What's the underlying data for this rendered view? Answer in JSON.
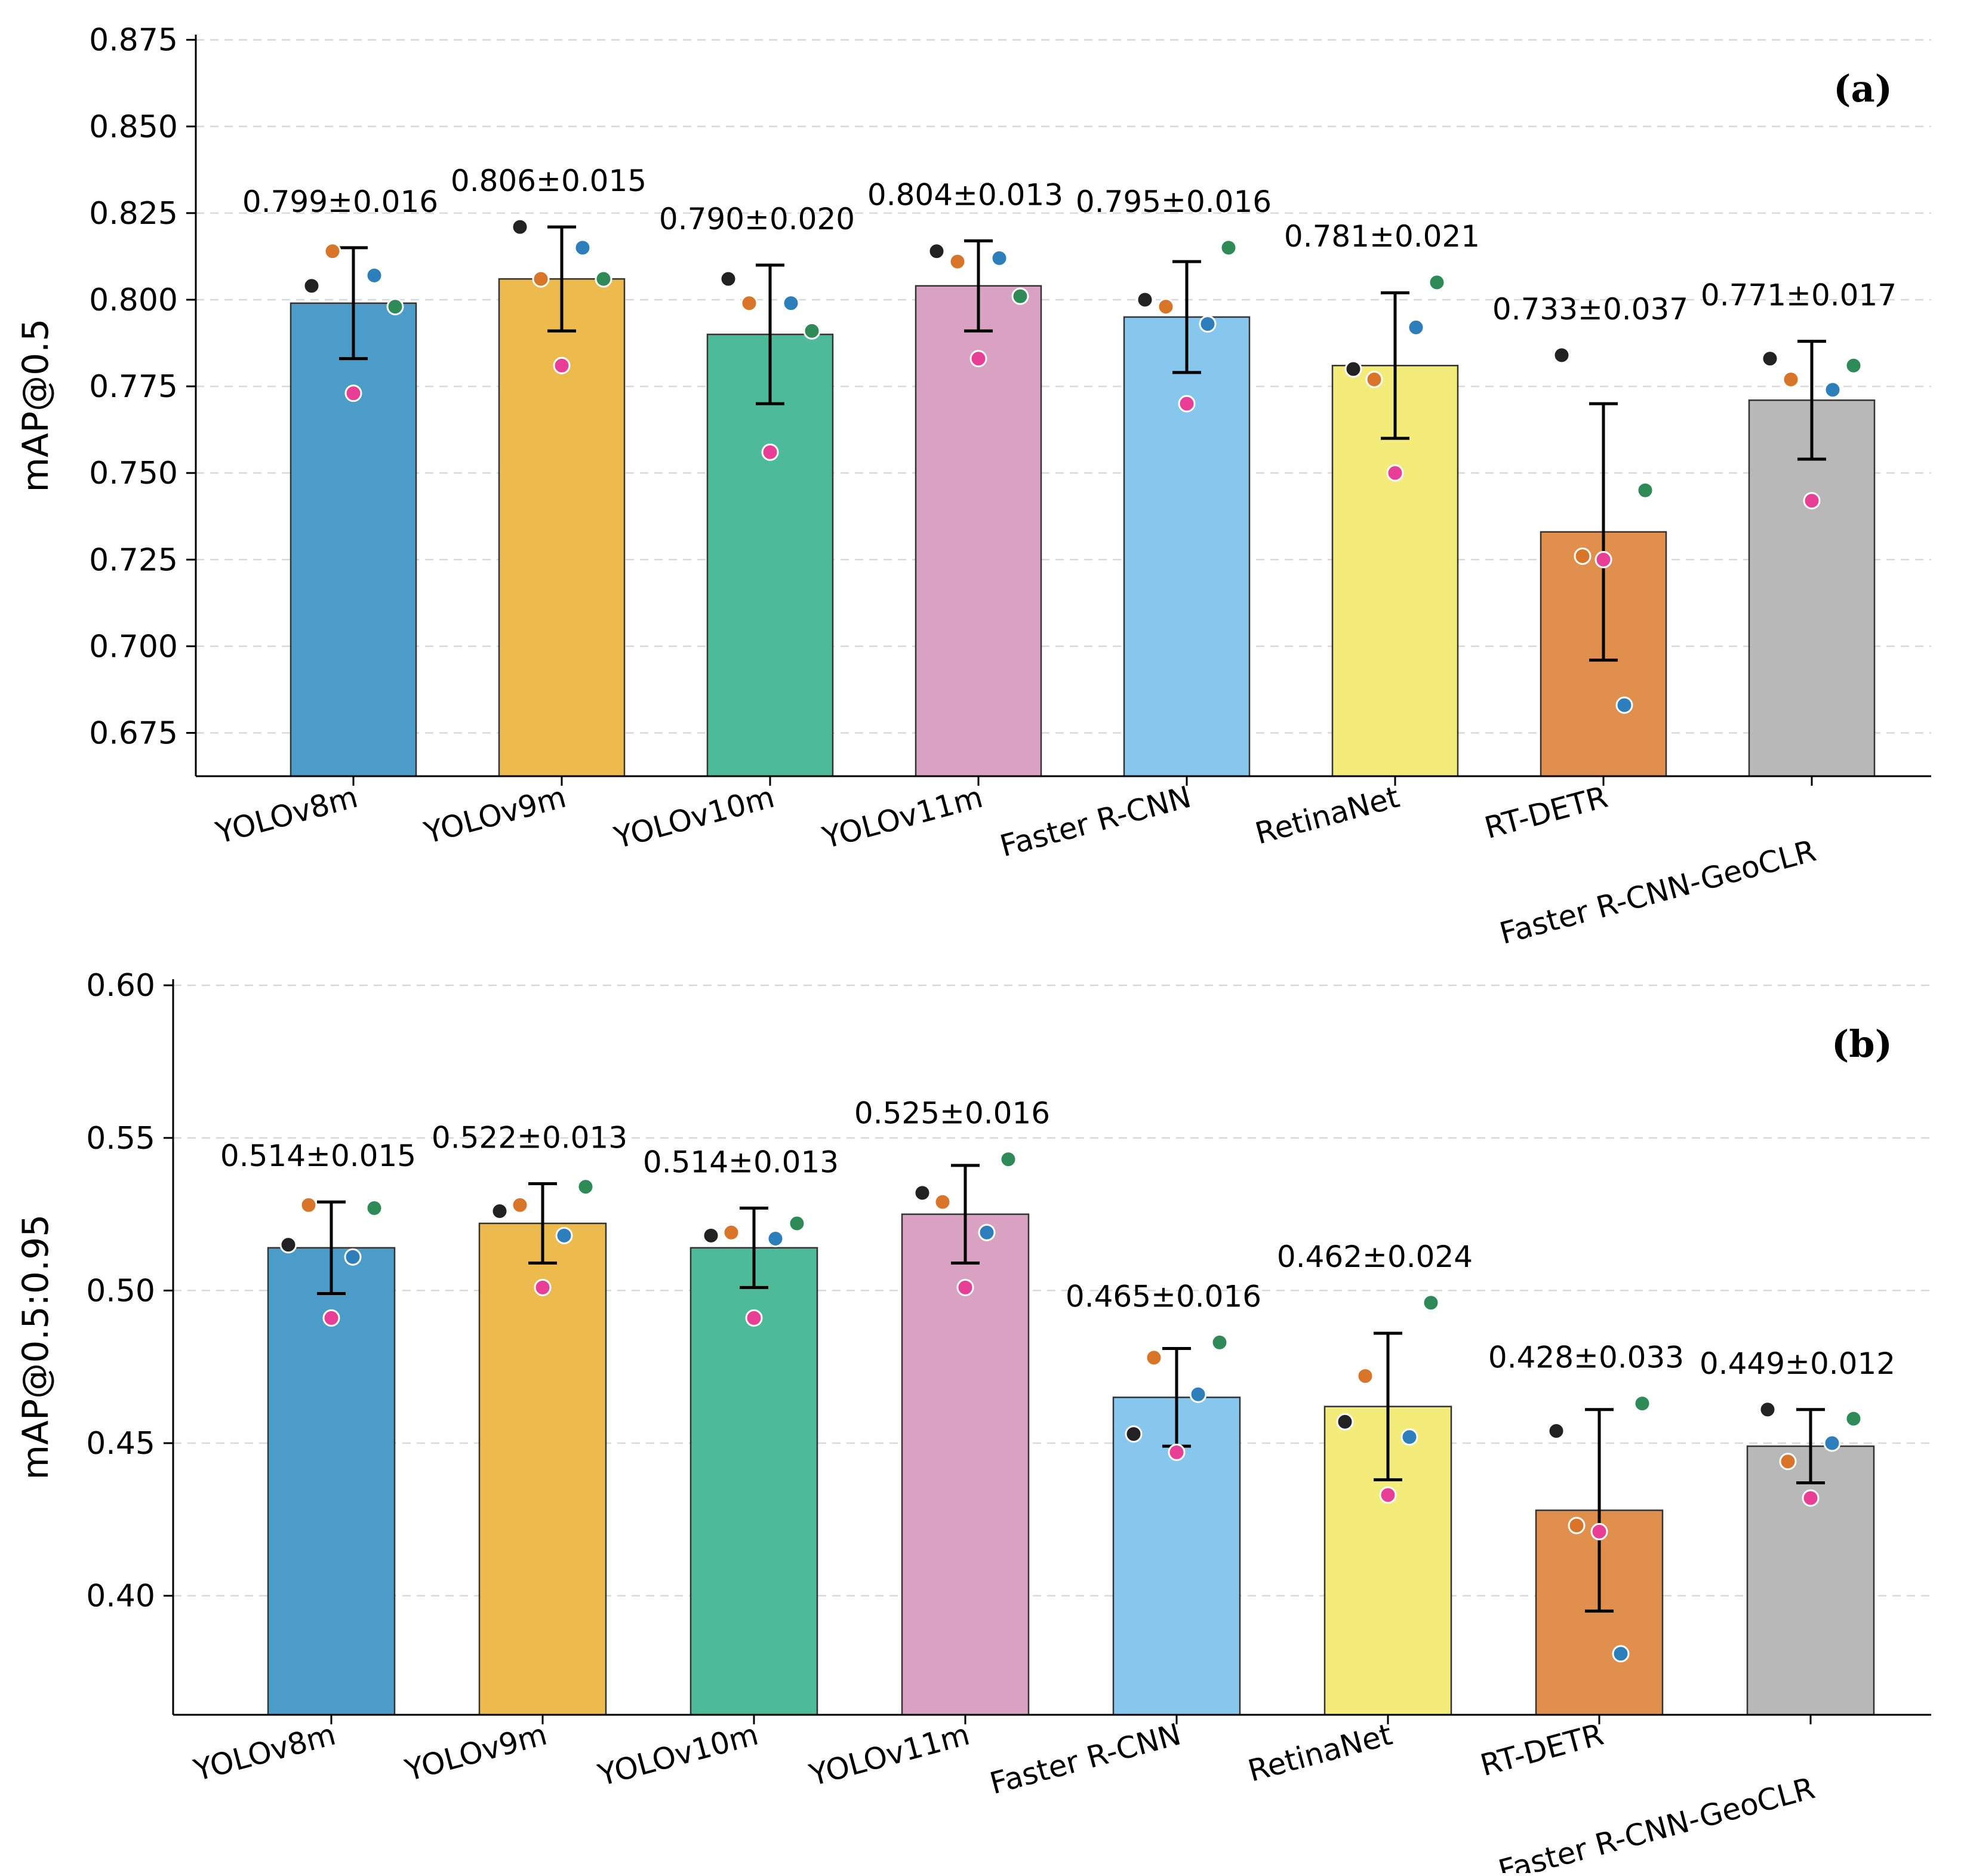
{
  "chart_data": [
    {
      "type": "bar",
      "panel_label": "(a)",
      "ylabel": "mAP@0.5",
      "ylim": [
        0.6625,
        0.8765
      ],
      "yticks": [
        "0.675",
        "0.700",
        "0.725",
        "0.750",
        "0.775",
        "0.800",
        "0.825",
        "0.850",
        "0.875"
      ],
      "grid": "horizontal dashed",
      "categories": [
        "YOLOv8m",
        "YOLOv9m",
        "YOLOv10m",
        "YOLOv11m",
        "Faster R-CNN",
        "RetinaNet",
        "RT-DETR",
        "Faster R-CNN-GeoCLR"
      ],
      "values": [
        0.799,
        0.806,
        0.79,
        0.804,
        0.795,
        0.781,
        0.733,
        0.771
      ],
      "errors": [
        0.016,
        0.015,
        0.02,
        0.013,
        0.016,
        0.021,
        0.037,
        0.017
      ],
      "value_labels": [
        "0.799±0.016",
        "0.806±0.015",
        "0.790±0.020",
        "0.804±0.013",
        "0.795±0.016",
        "0.781±0.021",
        "0.733±0.037",
        "0.771±0.017"
      ],
      "runs": [
        [
          0.804,
          0.814,
          0.773,
          0.807,
          0.798
        ],
        [
          0.821,
          0.806,
          0.781,
          0.815,
          0.806
        ],
        [
          0.806,
          0.799,
          0.756,
          0.799,
          0.791
        ],
        [
          0.814,
          0.811,
          0.783,
          0.812,
          0.801
        ],
        [
          0.8,
          0.798,
          0.77,
          0.793,
          0.815
        ],
        [
          0.78,
          0.777,
          0.75,
          0.792,
          0.805
        ],
        [
          0.784,
          0.726,
          0.725,
          0.683,
          0.745
        ],
        [
          0.783,
          0.777,
          0.742,
          0.774,
          0.781
        ]
      ]
    },
    {
      "type": "bar",
      "panel_label": "(b)",
      "ylabel": "mAP@0.5:0.95",
      "ylim": [
        0.361,
        0.602
      ],
      "yticks": [
        "0.40",
        "0.45",
        "0.50",
        "0.55",
        "0.60"
      ],
      "grid": "horizontal dashed",
      "categories": [
        "YOLOv8m",
        "YOLOv9m",
        "YOLOv10m",
        "YOLOv11m",
        "Faster R-CNN",
        "RetinaNet",
        "RT-DETR",
        "Faster R-CNN-GeoCLR"
      ],
      "values": [
        0.514,
        0.522,
        0.514,
        0.525,
        0.465,
        0.462,
        0.428,
        0.449
      ],
      "errors": [
        0.015,
        0.013,
        0.013,
        0.016,
        0.016,
        0.024,
        0.033,
        0.012
      ],
      "value_labels": [
        "0.514±0.015",
        "0.522±0.013",
        "0.514±0.013",
        "0.525±0.016",
        "0.465±0.016",
        "0.462±0.024",
        "0.428±0.033",
        "0.449±0.012"
      ],
      "runs": [
        [
          0.515,
          0.528,
          0.491,
          0.511,
          0.527
        ],
        [
          0.526,
          0.528,
          0.501,
          0.518,
          0.534
        ],
        [
          0.518,
          0.519,
          0.491,
          0.517,
          0.522
        ],
        [
          0.532,
          0.529,
          0.501,
          0.519,
          0.543
        ],
        [
          0.453,
          0.478,
          0.447,
          0.466,
          0.483
        ],
        [
          0.457,
          0.472,
          0.433,
          0.452,
          0.496
        ],
        [
          0.454,
          0.423,
          0.421,
          0.381,
          0.463
        ],
        [
          0.461,
          0.444,
          0.432,
          0.45,
          0.458
        ]
      ]
    }
  ],
  "colors": {
    "bars": [
      "#4b9cc8",
      "#ecba4d",
      "#4dbb99",
      "#d9a1c2",
      "#88c7ed",
      "#f3eb7a",
      "#e08f4d",
      "#b8b8b8"
    ],
    "runs": [
      "#222222",
      "#d97528",
      "#e83e96",
      "#2d7fbb",
      "#2e8b57"
    ],
    "grid": "#d9d9d9",
    "bar_edge": "#333333"
  }
}
